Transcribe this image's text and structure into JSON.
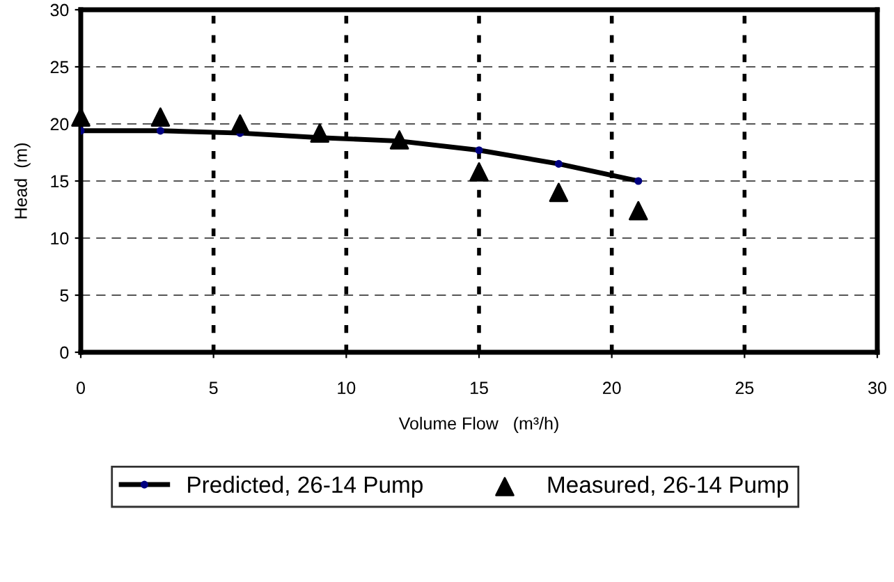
{
  "chart_data": {
    "type": "line",
    "xlabel": "Volume Flow   (m³/h)",
    "ylabel": "Head  (m)",
    "xlim": [
      0,
      30
    ],
    "xticks": [
      0,
      5,
      10,
      15,
      20,
      25,
      30
    ],
    "ylim": [
      0,
      30
    ],
    "yticks": [
      0,
      5,
      10,
      15,
      20,
      25,
      30
    ],
    "grid": true,
    "legend": "bottom",
    "series": [
      {
        "name": "Predicted, 26-14 Pump",
        "color": "#000000",
        "marker": "circle",
        "x": [
          0,
          3,
          6,
          9,
          12,
          15,
          18,
          21
        ],
        "values": [
          19.4,
          19.4,
          19.2,
          18.8,
          18.5,
          17.7,
          16.5,
          15.0
        ]
      },
      {
        "name": "Measured, 26-14 Pump",
        "type": "scatter",
        "color": "#000000",
        "marker": "triangle",
        "x": [
          0,
          3,
          6,
          9,
          12,
          15,
          18,
          21
        ],
        "values": [
          20.6,
          20.6,
          20.0,
          19.2,
          18.6,
          15.8,
          14.0,
          12.4
        ]
      }
    ]
  }
}
